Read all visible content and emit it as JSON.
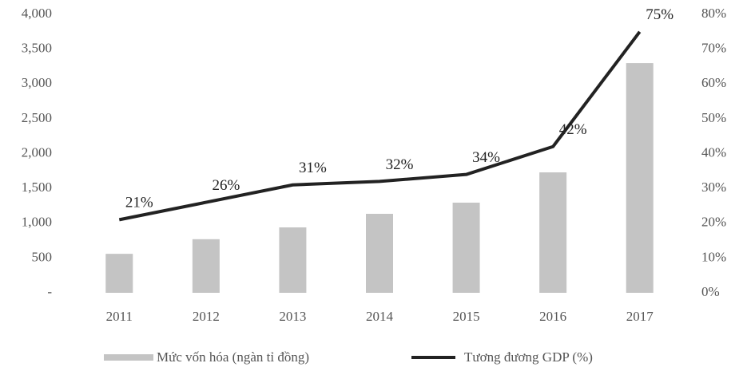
{
  "chart_data": {
    "type": "bar",
    "categories": [
      "2011",
      "2012",
      "2013",
      "2014",
      "2015",
      "2016",
      "2017"
    ],
    "series": [
      {
        "name": "Mức vốn hóa (ngàn tỉ đồng)",
        "type": "bar",
        "color": "#c4c4c4",
        "values": [
          560,
          770,
          940,
          1135,
          1295,
          1730,
          3300
        ]
      },
      {
        "name": "Tương đương GDP (%)",
        "type": "line",
        "axis": "y2",
        "color": "#222222",
        "values": [
          21,
          26,
          31,
          32,
          34,
          42,
          75
        ],
        "value_labels": [
          "21%",
          "26%",
          "31%",
          "32%",
          "34%",
          "42%",
          "75%"
        ]
      }
    ],
    "ylim": [
      0,
      4000
    ],
    "yticks": [
      {
        "value": 0,
        "label": "-"
      },
      500,
      {
        "value": 1000,
        "label": "1,000"
      },
      {
        "value": 1500,
        "label": "1,500"
      },
      {
        "value": 2000,
        "label": "2,000"
      },
      {
        "value": 2500,
        "label": "2,500"
      },
      {
        "value": 3000,
        "label": "3,000"
      },
      {
        "value": 3500,
        "label": "3,500"
      },
      {
        "value": 4000,
        "label": "4,000"
      }
    ],
    "y2lim": [
      0,
      80
    ],
    "y2ticks": [
      {
        "value": 0,
        "label": "0%"
      },
      {
        "value": 10,
        "label": "10%"
      },
      {
        "value": 20,
        "label": "20%"
      },
      {
        "value": 30,
        "label": "30%"
      },
      {
        "value": 40,
        "label": "40%"
      },
      {
        "value": 50,
        "label": "50%"
      },
      {
        "value": 60,
        "label": "60%"
      },
      {
        "value": 70,
        "label": "70%"
      },
      {
        "value": 80,
        "label": "80%"
      }
    ],
    "grid": false,
    "legend": "bottom"
  }
}
